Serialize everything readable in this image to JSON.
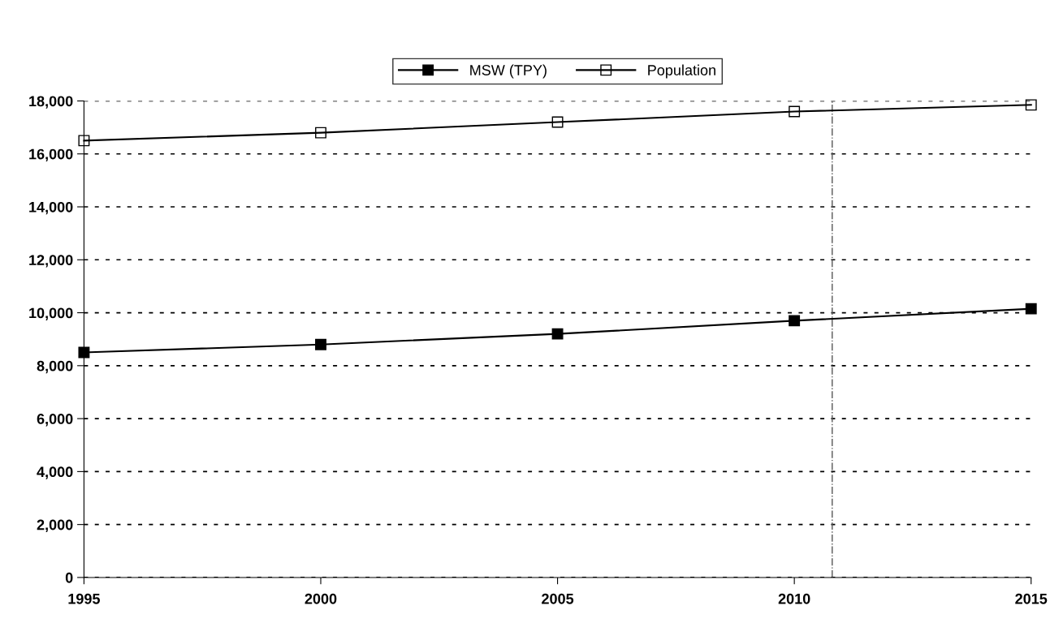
{
  "chart_data": {
    "type": "line",
    "x": [
      1995,
      2000,
      2005,
      2010,
      2015
    ],
    "series": [
      {
        "name": "MSW (TPY)",
        "color": "#000000",
        "marker": "square",
        "values": [
          8500,
          8800,
          9200,
          9700,
          10150
        ]
      },
      {
        "name": "Population",
        "color": "#000000",
        "marker": "square_open",
        "values": [
          16500,
          16800,
          17200,
          17600,
          17850
        ]
      }
    ],
    "xlim": [
      1995,
      2015
    ],
    "xticks": [
      1995,
      2000,
      2005,
      2010,
      2015
    ],
    "ylim": [
      0,
      18000
    ],
    "yticks": [
      {
        "value": 0,
        "label": "0"
      },
      {
        "value": 2000,
        "label": "2,000"
      },
      {
        "value": 4000,
        "label": "4,000"
      },
      {
        "value": 6000,
        "label": "6,000"
      },
      {
        "value": 8000,
        "label": "8,000"
      },
      {
        "value": 10000,
        "label": "10,000"
      },
      {
        "value": 12000,
        "label": "12,000"
      },
      {
        "value": 14000,
        "label": "14,000"
      },
      {
        "value": 16000,
        "label": "16,000"
      },
      {
        "value": 18000,
        "label": "18,000"
      }
    ],
    "grid": "y",
    "legend": "top",
    "line_style": "solid",
    "ref_lines": [
      {
        "axis": "x",
        "value": 2010.8,
        "line_style": "dashdot",
        "color": "#555555"
      }
    ]
  }
}
